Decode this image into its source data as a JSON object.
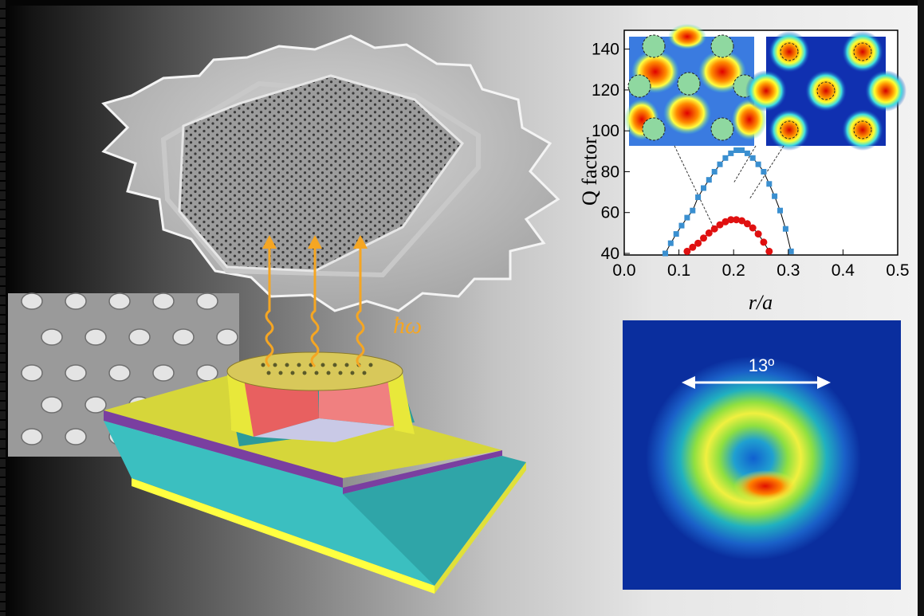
{
  "emission_label": "ħω",
  "farfield": {
    "angle_label": "13º"
  },
  "chart_data": {
    "type": "scatter",
    "xlabel": "r/a",
    "ylabel": "Q factor",
    "xlim": [
      0.0,
      0.5
    ],
    "ylim": [
      40,
      150
    ],
    "x_ticks": [
      "0.0",
      "0.1",
      "0.2",
      "0.3",
      "0.4",
      "0.5"
    ],
    "y_ticks": [
      "40",
      "60",
      "80",
      "100",
      "120",
      "140"
    ],
    "series": [
      {
        "color": "#3a8fd0",
        "marker": "square",
        "x": [
          0.075,
          0.085,
          0.095,
          0.105,
          0.115,
          0.125,
          0.135,
          0.145,
          0.155,
          0.165,
          0.175,
          0.185,
          0.195,
          0.205,
          0.215,
          0.225,
          0.235,
          0.245,
          0.255,
          0.265,
          0.275,
          0.285,
          0.295,
          0.305
        ],
        "y": [
          40,
          45,
          49.5,
          53.6,
          57.5,
          61,
          67.5,
          72,
          76,
          80,
          83.6,
          86.7,
          89,
          90.5,
          90.5,
          89,
          86.7,
          83.6,
          80,
          74,
          68,
          61,
          52,
          41
        ]
      },
      {
        "color": "#e01010",
        "marker": "circle",
        "x": [
          0.115,
          0.125,
          0.135,
          0.145,
          0.155,
          0.165,
          0.175,
          0.185,
          0.195,
          0.205,
          0.215,
          0.225,
          0.235,
          0.245,
          0.255,
          0.265
        ],
        "y": [
          41,
          43,
          45,
          47.5,
          50,
          52,
          54,
          55.5,
          56.5,
          56.5,
          56,
          54.5,
          52.5,
          49.5,
          45.5,
          41
        ]
      }
    ],
    "grid": false
  }
}
